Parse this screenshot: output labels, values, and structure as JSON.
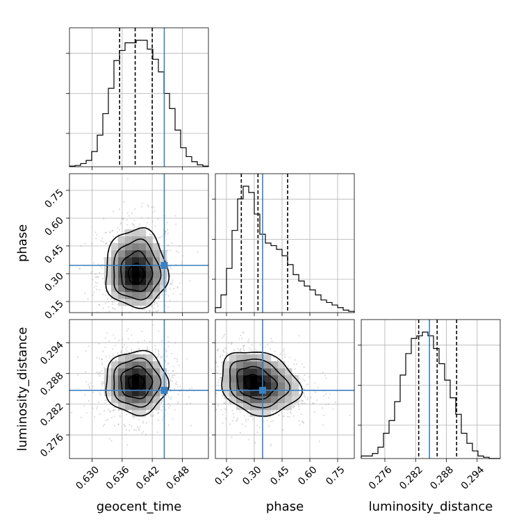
{
  "chart_data": {
    "type": "corner",
    "parameters": [
      "geocent_time",
      "phase",
      "luminosity_distance"
    ],
    "axis_labels": {
      "geocent_time": "geocent_time",
      "phase": "phase",
      "luminosity_distance": "luminosity_distance"
    },
    "ranges": {
      "geocent_time": [
        0.6255,
        0.6532
      ],
      "phase": [
        0.09,
        0.84
      ],
      "luminosity_distance": [
        0.2714,
        0.2985
      ]
    },
    "ticks": {
      "geocent_time": [
        "0.630",
        "0.636",
        "0.642",
        "0.648"
      ],
      "phase": [
        "0.15",
        "0.30",
        "0.45",
        "0.60",
        "0.75"
      ],
      "luminosity_distance": [
        "0.276",
        "0.282",
        "0.288",
        "0.294"
      ]
    },
    "truths": {
      "geocent_time": 0.6444,
      "phase": 0.345,
      "luminosity_distance": 0.2847
    },
    "quantiles": {
      "geocent_time": [
        0.6355,
        0.6386,
        0.642
      ],
      "phase": [
        0.23,
        0.32,
        0.48
      ],
      "luminosity_distance": [
        0.2826,
        0.2862,
        0.29
      ]
    },
    "histograms": {
      "geocent_time": [
        0.005,
        0.01,
        0.025,
        0.05,
        0.12,
        0.25,
        0.42,
        0.62,
        0.84,
        0.92,
        0.98,
        0.98,
        1.0,
        1.0,
        0.93,
        0.85,
        0.75,
        0.58,
        0.46,
        0.29,
        0.15,
        0.08,
        0.04,
        0.015,
        0.005
      ],
      "phase": [
        0.04,
        0.14,
        0.35,
        0.65,
        0.9,
        1.0,
        0.95,
        0.78,
        0.62,
        0.55,
        0.53,
        0.5,
        0.45,
        0.38,
        0.3,
        0.25,
        0.21,
        0.18,
        0.14,
        0.1,
        0.08,
        0.06,
        0.04,
        0.02,
        0.01
      ],
      "luminosity_distance": [
        0.02,
        0.02,
        0.04,
        0.09,
        0.2,
        0.3,
        0.45,
        0.66,
        0.83,
        0.95,
        0.97,
        1.0,
        0.97,
        0.87,
        0.75,
        0.62,
        0.48,
        0.35,
        0.2,
        0.12,
        0.06,
        0.02,
        0.01,
        0.0,
        0.0
      ]
    },
    "grid": true,
    "legend": "none"
  }
}
